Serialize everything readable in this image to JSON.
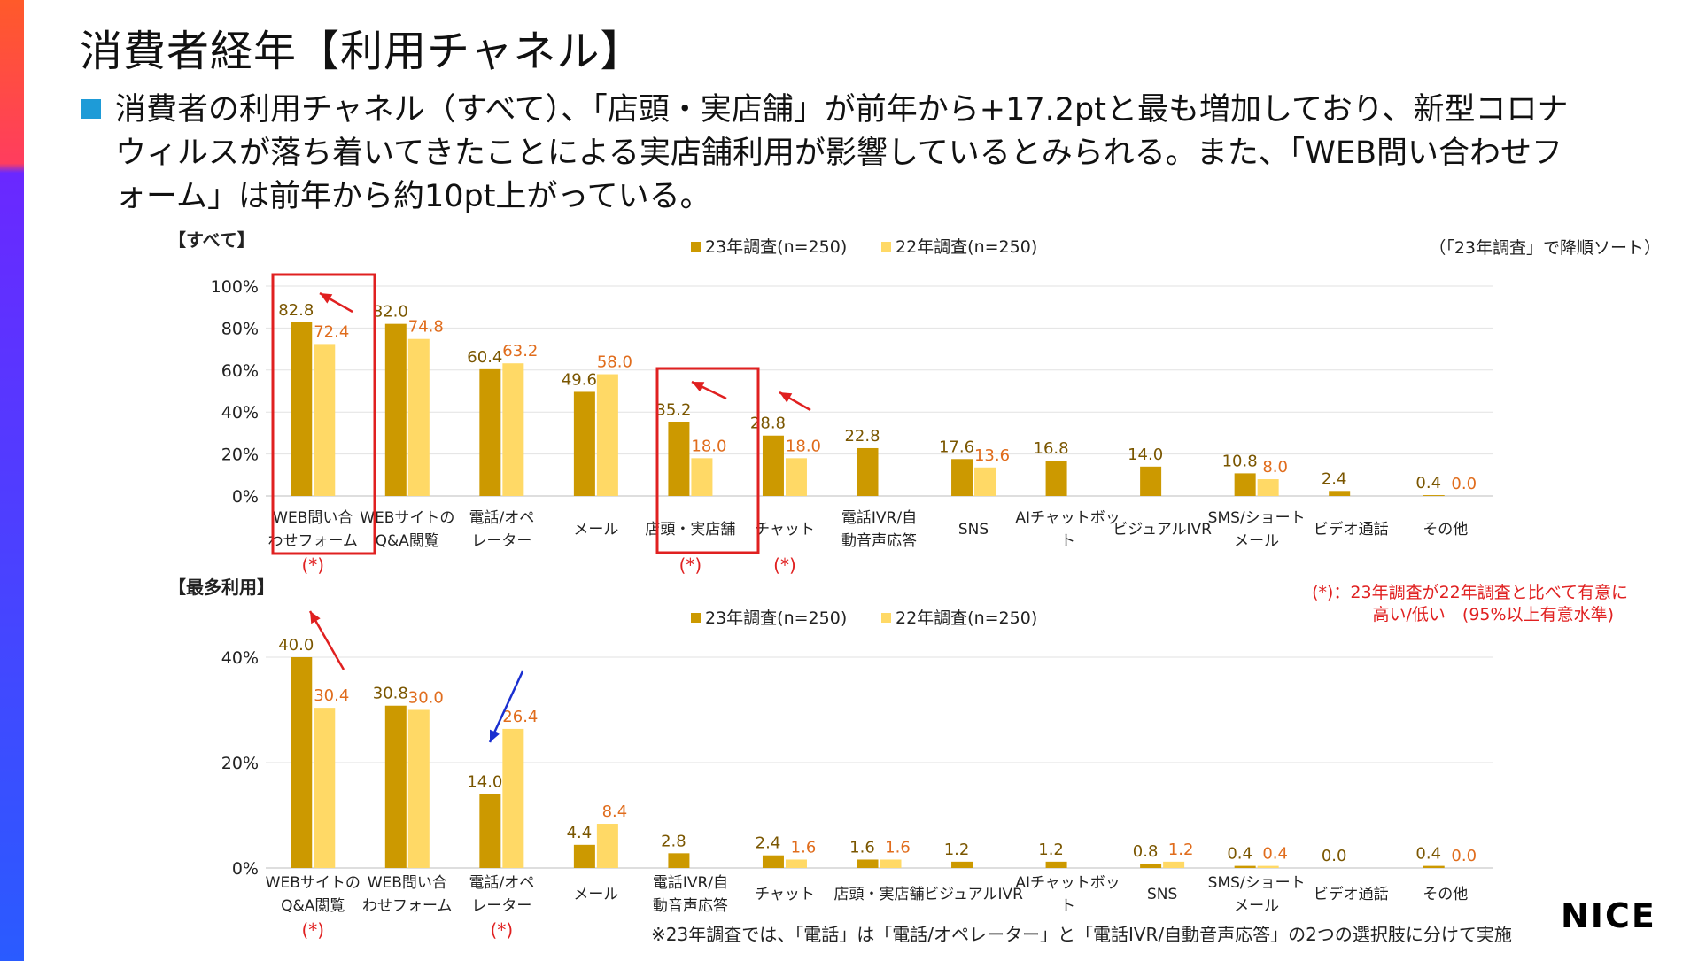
{
  "page": {
    "title": "消費者経年【利用チャネル】",
    "lead": "消費者の利用チャネル（すべて）、「店頭・実店舗」が前年から+17.2ptと最も増加しており、新型コロナウィルスが落ち着いてきたことによる実店舗利用が影響しているとみられる。また、「WEB問い合わせフォーム」は前年から約10pt上がっている。",
    "sort_note": "（「23年調査」で降順ソート）",
    "sig_note_line1": "(*)：23年調査が22年調査と比べて有意に",
    "sig_note_line2": "高い/低い　(95%以上有意水準)",
    "footnote": "※23年調査では、「電話」は「電話/オペレーター」と「電話IVR/自動音声応答」の2つの選択肢に分けて実施",
    "logo": "NICE",
    "sig_mark": "(*)"
  },
  "colors": {
    "series23": "#cc9900",
    "series22": "#ffd966",
    "label23": "#7a5600",
    "label22": "#e06c1c",
    "highlight": "#e02020",
    "arrow_up": "#e02020",
    "arrow_down": "#1a2fd0",
    "sig": "#e02020",
    "accent_bullet": "#1e9bd7"
  },
  "chart_data": [
    {
      "type": "bar",
      "title": "【すべて】",
      "ylabel": "",
      "ylim": [
        0,
        100
      ],
      "yticks": [
        "0%",
        "20%",
        "40%",
        "60%",
        "80%",
        "100%"
      ],
      "grid": true,
      "legend_position": "top-center",
      "categories": [
        "WEB問い合わせフォーム",
        "WEBサイトのQ&A閲覧",
        "電話/オペレーター",
        "メール",
        "店頭・実店舗",
        "チャット",
        "電話IVR/自動音声応答",
        "SNS",
        "AIチャットボット",
        "ビジュアルIVR",
        "SMS/ショートメール",
        "ビデオ通話",
        "その他"
      ],
      "category_lines": [
        [
          "WEB問い合",
          "わせフォーム"
        ],
        [
          "WEBサイトの",
          "Q&A閲覧"
        ],
        [
          "電話/オペ",
          "レーター"
        ],
        [
          "メール"
        ],
        [
          "店頭・実店舗"
        ],
        [
          "チャット"
        ],
        [
          "電話IVR/自",
          "動音声応答"
        ],
        [
          "SNS"
        ],
        [
          "AIチャットボッ",
          "ト"
        ],
        [
          "ビジュアルIVR"
        ],
        [
          "SMS/ショート",
          "メール"
        ],
        [
          "ビデオ通話"
        ],
        [
          "その他"
        ]
      ],
      "series": [
        {
          "name": "23年調査(n=250)",
          "values": [
            82.8,
            82.0,
            60.4,
            49.6,
            35.2,
            28.8,
            22.8,
            17.6,
            16.8,
            14.0,
            10.8,
            2.4,
            0.4
          ]
        },
        {
          "name": "22年調査(n=250)",
          "values": [
            72.4,
            74.8,
            63.2,
            58.0,
            18.0,
            18.0,
            null,
            13.6,
            null,
            null,
            8.0,
            null,
            0.0
          ]
        }
      ],
      "significant": [
        0,
        4,
        5
      ],
      "highlighted": [
        0,
        4
      ],
      "arrows_up": [
        0,
        4,
        5
      ],
      "arrows_down": []
    },
    {
      "type": "bar",
      "title": "【最多利用】",
      "ylabel": "",
      "ylim": [
        0,
        40
      ],
      "yticks": [
        "0%",
        "20%",
        "40%"
      ],
      "grid": true,
      "legend_position": "top-center",
      "categories": [
        "WEBサイトのQ&A閲覧",
        "WEB問い合わせフォーム",
        "電話/オペレーター",
        "メール",
        "電話IVR/自動音声応答",
        "チャット",
        "店頭・実店舗",
        "ビジュアルIVR",
        "AIチャットボット",
        "SNS",
        "SMS/ショートメール",
        "ビデオ通話",
        "その他"
      ],
      "category_lines": [
        [
          "WEBサイトの",
          "Q&A閲覧"
        ],
        [
          "WEB問い合",
          "わせフォーム"
        ],
        [
          "電話/オペ",
          "レーター"
        ],
        [
          "メール"
        ],
        [
          "電話IVR/自",
          "動音声応答"
        ],
        [
          "チャット"
        ],
        [
          "店頭・実店舗"
        ],
        [
          "ビジュアルIVR"
        ],
        [
          "AIチャットボッ",
          "ト"
        ],
        [
          "SNS"
        ],
        [
          "SMS/ショート",
          "メール"
        ],
        [
          "ビデオ通話"
        ],
        [
          "その他"
        ]
      ],
      "series": [
        {
          "name": "23年調査(n=250)",
          "values": [
            40.0,
            30.8,
            14.0,
            4.4,
            2.8,
            2.4,
            1.6,
            1.2,
            1.2,
            0.8,
            0.4,
            0.0,
            0.4
          ]
        },
        {
          "name": "22年調査(n=250)",
          "values": [
            30.4,
            30.0,
            26.4,
            8.4,
            null,
            1.6,
            1.6,
            null,
            null,
            1.2,
            0.4,
            null,
            0.0
          ]
        }
      ],
      "significant": [
        0,
        2
      ],
      "highlighted": [],
      "arrows_up": [
        0
      ],
      "arrows_down": [
        2
      ]
    }
  ]
}
